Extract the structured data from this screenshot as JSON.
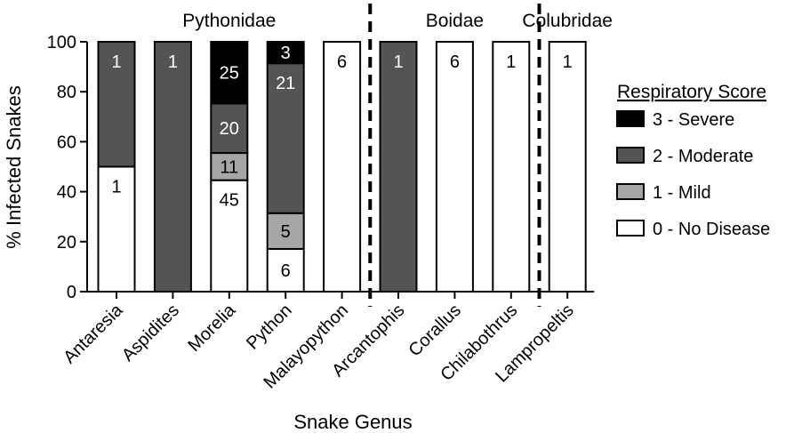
{
  "chart_data": {
    "type": "bar",
    "stacked": true,
    "xlabel": "Snake Genus",
    "ylabel": "% Infected Snakes",
    "ylim": [
      0,
      100
    ],
    "yticks": [
      0,
      20,
      40,
      60,
      80,
      100
    ],
    "grid": false,
    "legend_title": "Respiratory Score",
    "legend_position": "right",
    "categories": [
      "Antaresia",
      "Aspidites",
      "Morelia",
      "Python",
      "Malayopython",
      "Arcantophis",
      "Corallus",
      "Chilabothrus",
      "Lampropeltis"
    ],
    "families": [
      {
        "name": "Pythonidae",
        "categories": [
          "Antaresia",
          "Aspidites",
          "Morelia",
          "Python",
          "Malayopython"
        ]
      },
      {
        "name": "Boidae",
        "categories": [
          "Arcantophis",
          "Corallus",
          "Chilabothrus"
        ]
      },
      {
        "name": "Colubridae",
        "categories": [
          "Lampropeltis"
        ]
      }
    ],
    "series": [
      {
        "name": "0 - No Disease",
        "color": "#ffffff",
        "text_color": "#000000",
        "values": [
          50,
          0,
          44.6,
          17.1,
          100,
          0,
          100,
          100,
          100
        ],
        "labels": [
          "1",
          "",
          "45",
          "6",
          "6",
          "",
          "6",
          "1",
          "1"
        ]
      },
      {
        "name": "1 - Mild",
        "color": "#a6a6a6",
        "text_color": "#000000",
        "values": [
          0,
          0,
          10.9,
          14.3,
          0,
          0,
          0,
          0,
          0
        ],
        "labels": [
          "",
          "",
          "11",
          "5",
          "",
          "",
          "",
          "",
          ""
        ]
      },
      {
        "name": "2 - Moderate",
        "color": "#545454",
        "text_color": "#ffffff",
        "values": [
          50,
          100,
          19.8,
          60,
          0,
          100,
          0,
          0,
          0
        ],
        "labels": [
          "1",
          "1",
          "20",
          "21",
          "",
          "1",
          "",
          "",
          ""
        ]
      },
      {
        "name": "3 - Severe",
        "color": "#000000",
        "text_color": "#ffffff",
        "values": [
          0,
          0,
          24.7,
          8.6,
          0,
          0,
          0,
          0,
          0
        ],
        "labels": [
          "",
          "",
          "25",
          "3",
          "",
          "",
          "",
          "",
          ""
        ]
      }
    ]
  }
}
